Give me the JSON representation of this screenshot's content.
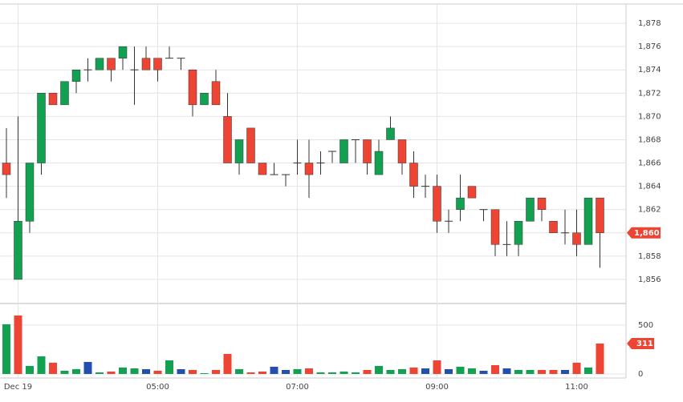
{
  "chart_data": [
    {
      "type": "candlestick",
      "categories": [
        null,
        "Dec 19",
        null,
        null,
        null,
        null,
        null,
        null,
        null,
        null,
        null,
        null,
        null,
        "05:00",
        null,
        null,
        null,
        null,
        null,
        null,
        null,
        null,
        null,
        null,
        null,
        "07:00",
        null,
        null,
        null,
        null,
        null,
        null,
        null,
        null,
        null,
        null,
        null,
        "09:00",
        null,
        null,
        null,
        null,
        null,
        null,
        null,
        null,
        null,
        null,
        null,
        "11:00",
        null,
        null
      ],
      "open": [
        1866,
        1856,
        1861,
        1866,
        1872,
        1871,
        1873,
        1874,
        1874,
        1875,
        1875,
        1874,
        1875,
        1875,
        1875,
        1875,
        1874,
        1871,
        1873,
        1870,
        1866,
        1869,
        1866,
        1865,
        1865,
        1866,
        1866,
        1866,
        1867,
        1866,
        1868,
        1868,
        1865,
        1868,
        1868,
        1866,
        1864,
        1864,
        1861,
        1862,
        1864,
        1862,
        1862,
        1859,
        1859,
        1861,
        1863,
        1861,
        1860,
        1860,
        1859,
        1863
      ],
      "high": [
        1869,
        1870,
        1866,
        1872,
        1872,
        1873,
        1874,
        1875,
        1875,
        1875,
        1876,
        1876,
        1876,
        1875,
        1876,
        1875,
        1874,
        1872,
        1874,
        1872,
        1868,
        1869,
        1866,
        1866,
        1865,
        1868,
        1868,
        1867,
        1867,
        1868,
        1868,
        1868,
        1868,
        1870,
        1868,
        1867,
        1865,
        1865,
        1862,
        1865,
        1864,
        1862,
        1862,
        1861,
        1861,
        1863,
        1863,
        1861,
        1862,
        1862,
        1863,
        1863
      ],
      "low": [
        1863,
        1856,
        1860,
        1865,
        1871,
        1871,
        1872,
        1873,
        1874,
        1873,
        1874,
        1871,
        1874,
        1873,
        1875,
        1874,
        1870,
        1871,
        1871,
        1866,
        1865,
        1866,
        1865,
        1865,
        1864,
        1865,
        1863,
        1865,
        1866,
        1866,
        1866,
        1865,
        1865,
        1868,
        1865,
        1863,
        1863,
        1860,
        1860,
        1861,
        1863,
        1861,
        1858,
        1858,
        1858,
        1861,
        1861,
        1860,
        1859,
        1858,
        1859,
        1857
      ],
      "close": [
        1865,
        1861,
        1866,
        1872,
        1871,
        1873,
        1874,
        1874,
        1875,
        1874,
        1876,
        1874,
        1874,
        1874,
        1875,
        1875,
        1871,
        1872,
        1871,
        1866,
        1868,
        1866,
        1865,
        1865,
        1865,
        1866,
        1865,
        1866,
        1867,
        1868,
        1868,
        1866,
        1867,
        1869,
        1866,
        1864,
        1864,
        1861,
        1861,
        1863,
        1863,
        1862,
        1859,
        1859,
        1861,
        1863,
        1862,
        1860,
        1860,
        1859,
        1863,
        1860
      ],
      "up_color": "#12a150",
      "down_color": "#ee4433",
      "ylim": [
        1854,
        1880
      ],
      "yticks": [
        {
          "value": 1856,
          "label": "1,856"
        },
        {
          "value": 1858,
          "label": "1,858"
        },
        {
          "value": 1860,
          "label": "1,860"
        },
        {
          "value": 1862,
          "label": "1,862"
        },
        {
          "value": 1864,
          "label": "1,864"
        },
        {
          "value": 1866,
          "label": "1,866"
        },
        {
          "value": 1868,
          "label": "1,868"
        },
        {
          "value": 1870,
          "label": "1,870"
        },
        {
          "value": 1872,
          "label": "1,872"
        },
        {
          "value": 1874,
          "label": "1,874"
        },
        {
          "value": 1876,
          "label": "1,876"
        },
        {
          "value": 1878,
          "label": "1,878"
        }
      ],
      "last_price": {
        "value": 1860,
        "label": "1,860"
      },
      "grid": true
    },
    {
      "type": "bar",
      "values": [
        508,
        598,
        82,
        180,
        115,
        33,
        49,
        123,
        16,
        25,
        66,
        57,
        49,
        33,
        139,
        49,
        41,
        8,
        41,
        205,
        49,
        16,
        25,
        74,
        41,
        49,
        57,
        16,
        16,
        25,
        16,
        41,
        82,
        41,
        49,
        66,
        57,
        139,
        49,
        74,
        57,
        33,
        90,
        57,
        41,
        41,
        41,
        41,
        41,
        115,
        66,
        311
      ],
      "colors": [
        "#12a150",
        "#ee4433",
        "#12a150",
        "#12a150",
        "#ee4433",
        "#12a150",
        "#12a150",
        "#2350b0",
        "#12a150",
        "#ee4433",
        "#12a150",
        "#12a150",
        "#2350b0",
        "#ee4433",
        "#12a150",
        "#2350b0",
        "#ee4433",
        "#12a150",
        "#ee4433",
        "#ee4433",
        "#12a150",
        "#ee4433",
        "#ee4433",
        "#2350b0",
        "#2350b0",
        "#12a150",
        "#ee4433",
        "#12a150",
        "#12a150",
        "#12a150",
        "#12a150",
        "#ee4433",
        "#12a150",
        "#12a150",
        "#12a150",
        "#ee4433",
        "#2350b0",
        "#ee4433",
        "#2350b0",
        "#12a150",
        "#12a150",
        "#2350b0",
        "#ee4433",
        "#2350b0",
        "#12a150",
        "#12a150",
        "#ee4433",
        "#ee4433",
        "#2350b0",
        "#ee4433",
        "#12a150",
        "#ee4433"
      ],
      "ylim": [
        0,
        700
      ],
      "yticks": [
        0,
        500
      ],
      "grid": true
    }
  ]
}
